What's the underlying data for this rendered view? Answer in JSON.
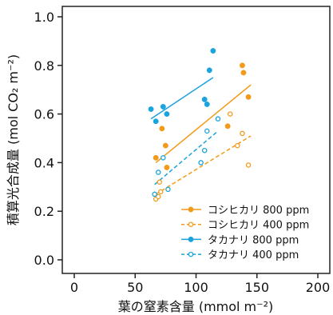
{
  "chart_data": {
    "type": "scatter",
    "xlabel": "葉の窒素含量 (mmol m⁻²)",
    "ylabel": "積算光合成量 (mol CO₂ m⁻²)",
    "xlim": [
      0,
      200
    ],
    "ylim": [
      0,
      1.0
    ],
    "xticks": [
      "0",
      "50",
      "100",
      "150",
      "200"
    ],
    "yticks": [
      "0.0",
      "0.2",
      "0.4",
      "0.6",
      "0.8",
      "1.0"
    ],
    "legend_position": "bottom-right",
    "grid": false,
    "series": [
      {
        "name": "コシヒカリ 800 ppm",
        "color": "#f29a1a",
        "marker": "filled",
        "line": "solid",
        "points": [
          [
            67,
            0.42
          ],
          [
            72,
            0.54
          ],
          [
            75,
            0.47
          ],
          [
            76,
            0.38
          ],
          [
            126,
            0.55
          ],
          [
            138,
            0.8
          ],
          [
            139,
            0.77
          ],
          [
            143,
            0.67
          ]
        ],
        "fit": [
          [
            67,
            0.4
          ],
          [
            145,
            0.72
          ]
        ]
      },
      {
        "name": "コシヒカリ 400 ppm",
        "color": "#f29a1a",
        "marker": "open",
        "line": "dashed",
        "points": [
          [
            67,
            0.25
          ],
          [
            69,
            0.26
          ],
          [
            71,
            0.28
          ],
          [
            70,
            0.32
          ],
          [
            128,
            0.6
          ],
          [
            134,
            0.47
          ],
          [
            138,
            0.52
          ],
          [
            143,
            0.39
          ]
        ],
        "fit": [
          [
            67,
            0.27
          ],
          [
            145,
            0.51
          ]
        ]
      },
      {
        "name": "タカナリ 800 ppm",
        "color": "#1aa3dc",
        "marker": "filled",
        "line": "solid",
        "points": [
          [
            63,
            0.62
          ],
          [
            67,
            0.57
          ],
          [
            73,
            0.63
          ],
          [
            76,
            0.6
          ],
          [
            107,
            0.66
          ],
          [
            109,
            0.64
          ],
          [
            111,
            0.78
          ],
          [
            114,
            0.86
          ]
        ],
        "fit": [
          [
            63,
            0.58
          ],
          [
            114,
            0.75
          ]
        ]
      },
      {
        "name": "タカナリ 400 ppm",
        "color": "#1aa3dc",
        "marker": "open",
        "line": "dashed",
        "points": [
          [
            66,
            0.27
          ],
          [
            69,
            0.36
          ],
          [
            73,
            0.42
          ],
          [
            77,
            0.29
          ],
          [
            104,
            0.4
          ],
          [
            107,
            0.45
          ],
          [
            109,
            0.53
          ],
          [
            118,
            0.58
          ]
        ],
        "fit": [
          [
            66,
            0.31
          ],
          [
            118,
            0.53
          ]
        ]
      }
    ]
  }
}
